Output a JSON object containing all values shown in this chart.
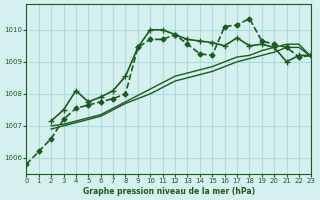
{
  "title": "Graphe pression niveau de la mer (hPa)",
  "bg_color": "#d6f0f0",
  "grid_color": "#aadddd",
  "line_color": "#1a5c1a",
  "xlim": [
    0,
    23
  ],
  "ylim": [
    1005.5,
    1010.8
  ],
  "yticks": [
    1006,
    1007,
    1008,
    1009,
    1010
  ],
  "xticks": [
    0,
    1,
    2,
    3,
    4,
    5,
    6,
    7,
    8,
    9,
    10,
    11,
    12,
    13,
    14,
    15,
    16,
    17,
    18,
    19,
    20,
    21,
    22,
    23
  ],
  "series": [
    {
      "x": [
        0,
        1,
        2,
        3,
        4,
        5,
        6,
        7,
        8,
        9,
        10,
        11,
        12,
        13,
        14,
        15,
        16,
        17,
        18,
        19,
        20,
        21,
        22,
        23
      ],
      "y": [
        1005.8,
        1006.2,
        1006.6,
        1007.2,
        1007.55,
        1007.65,
        1007.75,
        1007.85,
        1008.0,
        1009.45,
        1009.7,
        1009.7,
        1009.85,
        1009.55,
        1009.25,
        1009.2,
        1010.1,
        1010.15,
        1010.35,
        1009.65,
        1009.55,
        1009.45,
        1009.15,
        1009.2
      ],
      "marker": "D",
      "markersize": 2.5,
      "linewidth": 1.2,
      "linestyle": "--"
    },
    {
      "x": [
        2,
        3,
        4,
        5,
        6,
        7,
        8,
        9,
        10,
        11,
        12,
        13,
        14,
        15,
        16,
        17,
        18,
        19,
        20,
        21,
        22,
        23
      ],
      "y": [
        1007.15,
        1007.5,
        1008.1,
        1007.75,
        1007.9,
        1008.1,
        1008.55,
        1009.45,
        1010.0,
        1010.0,
        1009.85,
        1009.7,
        1009.65,
        1009.6,
        1009.5,
        1009.75,
        1009.5,
        1009.55,
        1009.45,
        1009.0,
        1009.2,
        1009.2
      ],
      "marker": "+",
      "markersize": 4,
      "linewidth": 1.2,
      "linestyle": "-"
    },
    {
      "x": [
        2,
        3,
        4,
        5,
        6,
        7,
        8,
        9,
        10,
        11,
        12,
        13,
        14,
        15,
        16,
        17,
        18,
        19,
        20,
        21,
        22,
        23
      ],
      "y": [
        1006.9,
        1007.0,
        1007.1,
        1007.2,
        1007.3,
        1007.5,
        1007.7,
        1007.85,
        1008.0,
        1008.2,
        1008.4,
        1008.5,
        1008.6,
        1008.7,
        1008.85,
        1009.0,
        1009.1,
        1009.2,
        1009.3,
        1009.45,
        1009.45,
        1009.15
      ],
      "marker": null,
      "markersize": 0,
      "linewidth": 1.0,
      "linestyle": "-"
    },
    {
      "x": [
        2,
        3,
        4,
        5,
        6,
        7,
        8,
        9,
        10,
        11,
        12,
        13,
        14,
        15,
        16,
        17,
        18,
        19,
        20,
        21,
        22,
        23
      ],
      "y": [
        1007.0,
        1007.05,
        1007.15,
        1007.25,
        1007.35,
        1007.55,
        1007.75,
        1007.95,
        1008.15,
        1008.35,
        1008.55,
        1008.65,
        1008.75,
        1008.85,
        1009.0,
        1009.15,
        1009.2,
        1009.35,
        1009.45,
        1009.55,
        1009.55,
        1009.15
      ],
      "marker": null,
      "markersize": 0,
      "linewidth": 1.0,
      "linestyle": "-"
    }
  ]
}
